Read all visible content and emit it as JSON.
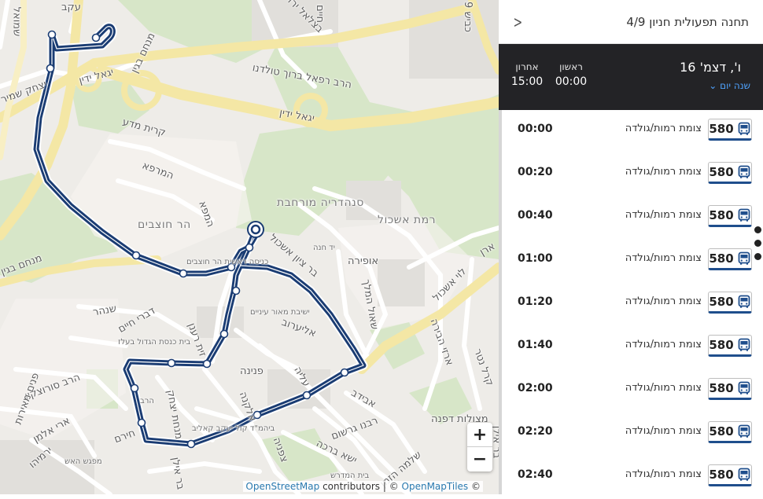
{
  "panel": {
    "title": "תחנה תפעולית חניון 4/9",
    "day_name": "ו', דצמ' 16",
    "change_day": "שנה יום ⌄",
    "first_label": "ראשון",
    "first_time": "00:00",
    "last_label": "אחרון",
    "last_time": "15:00"
  },
  "rides": [
    {
      "line": "580",
      "destination": "צומת רמות/גולדה",
      "time": "00:00"
    },
    {
      "line": "580",
      "destination": "צומת רמות/גולדה",
      "time": "00:20"
    },
    {
      "line": "580",
      "destination": "צומת רמות/גולדה",
      "time": "00:40"
    },
    {
      "line": "580",
      "destination": "צומת רמות/גולדה",
      "time": "01:00"
    },
    {
      "line": "580",
      "destination": "צומת רמות/גולדה",
      "time": "01:20"
    },
    {
      "line": "580",
      "destination": "צומת רמות/גולדה",
      "time": "01:40"
    },
    {
      "line": "580",
      "destination": "צומת רמות/גולדה",
      "time": "02:00"
    },
    {
      "line": "580",
      "destination": "צומת רמות/גולדה",
      "time": "02:20"
    },
    {
      "line": "580",
      "destination": "צומת רמות/גולדה",
      "time": "02:40"
    }
  ],
  "map": {
    "zoom_in": "+",
    "zoom_out": "−",
    "attribution_osm": "OpenStreetMap",
    "attribution_contrib": " contributors | © ",
    "attribution_omt": "OpenMapTiles",
    "attribution_end": " ©",
    "labels": {
      "l1": "כביש 9",
      "l2": "בצלאל ירדני",
      "l3": "עקב",
      "l4": "חיים",
      "l5": "שמואל",
      "l6": "מנחם בגין",
      "l7": "יגאל ידין",
      "l8": "יצחק שמיר",
      "l9": "הרב רפאל ברוך טולדנו",
      "l10": "יגאל ידין",
      "l11": "קרית מדע",
      "l12": "המרפא",
      "l13": "המפא",
      "l14": "הר חוצבים",
      "l15": "סנהדריה מורחבת",
      "l16": "רמת אשכול",
      "l17": "יד חנה",
      "l18": "אופירה",
      "l19": "שאול המלך",
      "l20": "לוי אשכול",
      "l21": "ארן",
      "l22": "מנחם בגין",
      "l23": "כניסה ראשית הר חוצבים",
      "l24": "בר ציון אשכול",
      "l25": "ישיבת מאור עיניים",
      "l26": "שנהר",
      "l27": "דברי חיים",
      "l28": "בית כנסת הגדול בעלז",
      "l29": "זית רענן",
      "l30": "אליערוב",
      "l31": "פנינה",
      "l32": "ארזי הבירה",
      "l33": "קרל נטר",
      "l34": "אבידב",
      "l35": "עליה",
      "l36": "מצולות דפנה",
      "l37": "הרב סורוצקין",
      "l38": "ארי אלמן",
      "l39": "מנחת יצחק",
      "l40": "אלקנה",
      "l41": "רבנו גרשום",
      "l42": "ישא ברכה",
      "l43": "צפניה",
      "l44": "חירם",
      "l45": "ירמיהו",
      "l46": "פנים מאירות",
      "l47": "מפגש האש",
      "l48": "בר אילן",
      "l49": "ביהמ\"ד קול יעקב קאליב",
      "l50": "בית המדרש",
      "l51": "שלמה הזמן",
      "l52": "בר אילן",
      "l53": "הרב"
    }
  }
}
